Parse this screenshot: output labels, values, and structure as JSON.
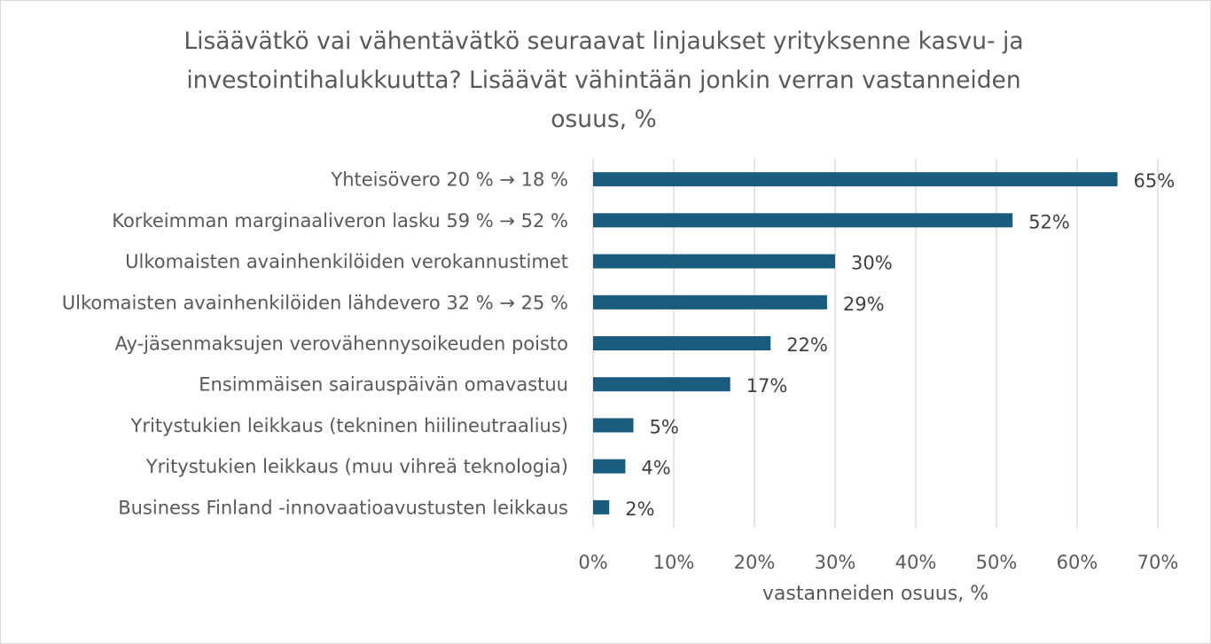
{
  "chart_data": {
    "type": "bar",
    "orientation": "horizontal",
    "title_lines": [
      "Lisäävätkö vai vähentävätkö seuraavat linjaukset yrityksenne kasvu- ja",
      "investointihalukkuutta? Lisäävät vähintään jonkin verran vastanneiden",
      "osuus, %"
    ],
    "xlabel": "vastanneiden osuus, %",
    "ylabel": "",
    "xlim": [
      0,
      70
    ],
    "x_ticks": [
      0,
      10,
      20,
      30,
      40,
      50,
      60,
      70
    ],
    "x_tick_labels": [
      "0%",
      "10%",
      "20%",
      "30%",
      "40%",
      "50%",
      "60%",
      "70%"
    ],
    "grid": "vertical",
    "legend": "none",
    "bar_color": "#1a5c7d",
    "categories": [
      "Yhteisövero 20 % → 18 %",
      "Korkeimman marginaaliveron lasku 59 % → 52 %",
      "Ulkomaisten avainhenkilöiden verokannustimet",
      "Ulkomaisten avainhenkilöiden lähdevero 32 % → 25 %",
      "Ay-jäsenmaksujen verovähennysoikeuden poisto",
      "Ensimmäisen sairauspäivän omavastuu",
      "Yritystukien leikkaus (tekninen hiilineutraalius)",
      "Yritystukien leikkaus (muu vihreä teknologia)",
      "Business Finland -innovaatioavustusten leikkaus"
    ],
    "values": [
      65,
      52,
      30,
      29,
      22,
      17,
      5,
      4,
      2
    ],
    "data_labels": [
      "65%",
      "52%",
      "30%",
      "29%",
      "22%",
      "17%",
      "5%",
      "4%",
      "2%"
    ]
  }
}
